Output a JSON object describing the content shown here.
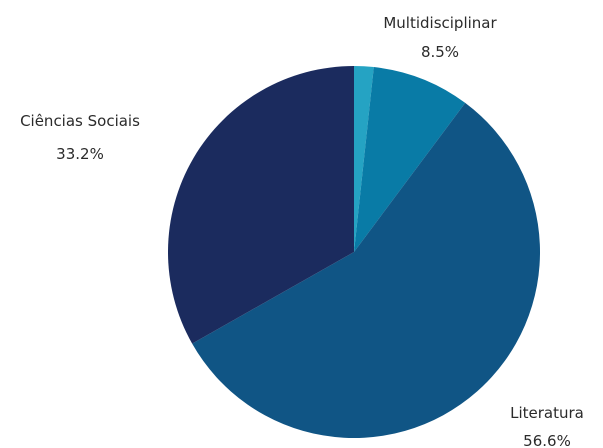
{
  "chart_data": {
    "type": "pie",
    "title": "",
    "labels": [
      "",
      "Multidisciplinar",
      "Literatura",
      "Ciências Sociais"
    ],
    "values": [
      1.7,
      8.5,
      56.6,
      33.2
    ],
    "value_labels": [
      "",
      "8.5%",
      "56.6%",
      "33.2%"
    ],
    "colors": [
      "#25a3c3",
      "#097ba6",
      "#105585",
      "#1b2b5e"
    ],
    "legend": "none",
    "start_angle": "12 o'clock",
    "direction": "clockwise"
  }
}
